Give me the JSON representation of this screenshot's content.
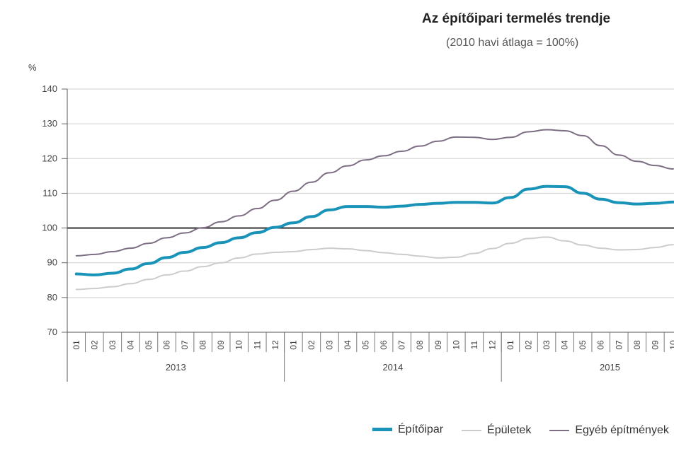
{
  "chart_data": {
    "type": "line",
    "title": "Az építőipari termelés trendje",
    "subtitle": "(2010 havi átlaga = 100%)",
    "ylabel": "%",
    "ylim": [
      70,
      140
    ],
    "yticks": [
      70,
      80,
      90,
      100,
      110,
      120,
      130,
      140
    ],
    "reference_line": 100,
    "categories": [
      "01",
      "02",
      "03",
      "04",
      "05",
      "06",
      "07",
      "08",
      "09",
      "10",
      "11",
      "12",
      "01",
      "02",
      "03",
      "04",
      "05",
      "06",
      "07",
      "08",
      "09",
      "10",
      "11",
      "12",
      "01",
      "02",
      "03",
      "04",
      "05",
      "06",
      "07",
      "08",
      "09",
      "10"
    ],
    "years": [
      {
        "label": "2013",
        "months": 12
      },
      {
        "label": "2014",
        "months": 12
      },
      {
        "label": "2015",
        "months": 10
      }
    ],
    "grid": true,
    "legend_position": "bottom",
    "series": [
      {
        "name": "Építőipar",
        "color": "#1a93b8",
        "width": 4,
        "values": [
          86.8,
          86.5,
          87.0,
          88.2,
          89.8,
          91.5,
          93.0,
          94.4,
          95.8,
          97.2,
          98.7,
          100.2,
          101.5,
          103.3,
          105.2,
          106.2,
          106.2,
          106.0,
          106.3,
          106.8,
          107.1,
          107.4,
          107.4,
          107.2,
          108.8,
          111.2,
          112.0,
          111.9,
          110.0,
          108.3,
          107.3,
          106.9,
          107.1,
          107.5
        ]
      },
      {
        "name": "Épületek",
        "color": "#cccccc",
        "width": 2,
        "values": [
          82.3,
          82.6,
          83.1,
          84.0,
          85.2,
          86.5,
          87.6,
          88.9,
          90.0,
          91.4,
          92.5,
          93.0,
          93.2,
          93.8,
          94.2,
          94.0,
          93.5,
          92.9,
          92.4,
          91.9,
          91.4,
          91.6,
          92.7,
          94.1,
          95.6,
          97.0,
          97.4,
          96.3,
          95.1,
          94.2,
          93.7,
          93.8,
          94.4,
          95.2
        ]
      },
      {
        "name": "Egyéb építmények",
        "color": "#7d6e83",
        "width": 2,
        "values": [
          92.0,
          92.4,
          93.2,
          94.2,
          95.6,
          97.2,
          98.6,
          100.1,
          101.8,
          103.5,
          105.6,
          108.0,
          110.6,
          113.2,
          115.9,
          117.9,
          119.6,
          120.8,
          122.1,
          123.6,
          125.0,
          126.2,
          126.1,
          125.5,
          126.1,
          127.7,
          128.3,
          128.0,
          126.6,
          123.7,
          121.0,
          119.2,
          118.0,
          117.0
        ]
      }
    ]
  }
}
